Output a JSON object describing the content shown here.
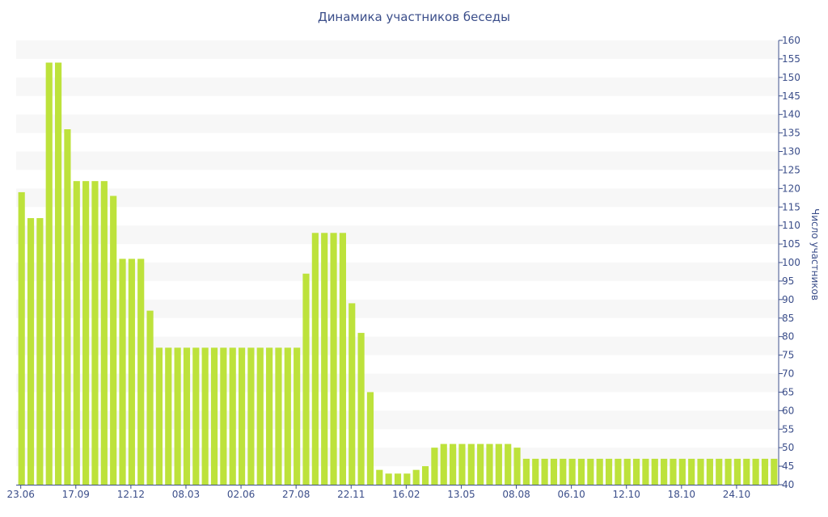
{
  "chart_data": {
    "type": "bar",
    "title": "Динамика участников беседы",
    "xlabel": "",
    "ylabel": "Число участников",
    "y_axis_side": "right",
    "ylim": [
      40,
      160
    ],
    "y_tick_step": 5,
    "grid": "alternating horizontal bands",
    "bar_color": "#bde23b",
    "band_color": "#f7f7f7",
    "text_color": "#3b4e8a",
    "x_tick_labels": [
      {
        "index": 0,
        "label": "23.06"
      },
      {
        "index": 6,
        "label": "17.09"
      },
      {
        "index": 12,
        "label": "12.12"
      },
      {
        "index": 18,
        "label": "08.03"
      },
      {
        "index": 24,
        "label": "02.06"
      },
      {
        "index": 30,
        "label": "27.08"
      },
      {
        "index": 36,
        "label": "22.11"
      },
      {
        "index": 42,
        "label": "16.02"
      },
      {
        "index": 48,
        "label": "13.05"
      },
      {
        "index": 54,
        "label": "08.08"
      },
      {
        "index": 60,
        "label": "06.10"
      },
      {
        "index": 66,
        "label": "12.10"
      },
      {
        "index": 72,
        "label": "18.10"
      },
      {
        "index": 78,
        "label": "24.10"
      }
    ],
    "values": [
      119,
      112,
      112,
      154,
      154,
      136,
      122,
      122,
      122,
      122,
      118,
      101,
      101,
      101,
      87,
      77,
      77,
      77,
      77,
      77,
      77,
      77,
      77,
      77,
      77,
      77,
      77,
      77,
      77,
      77,
      77,
      97,
      108,
      108,
      108,
      108,
      89,
      81,
      65,
      44,
      43,
      43,
      43,
      44,
      45,
      50,
      51,
      51,
      51,
      51,
      51,
      51,
      51,
      51,
      50,
      47,
      47,
      47,
      47,
      47,
      47,
      47,
      47,
      47,
      47,
      47,
      47,
      47,
      47,
      47,
      47,
      47,
      47,
      47,
      47,
      47,
      47,
      47,
      47,
      47,
      47,
      47,
      47
    ]
  }
}
